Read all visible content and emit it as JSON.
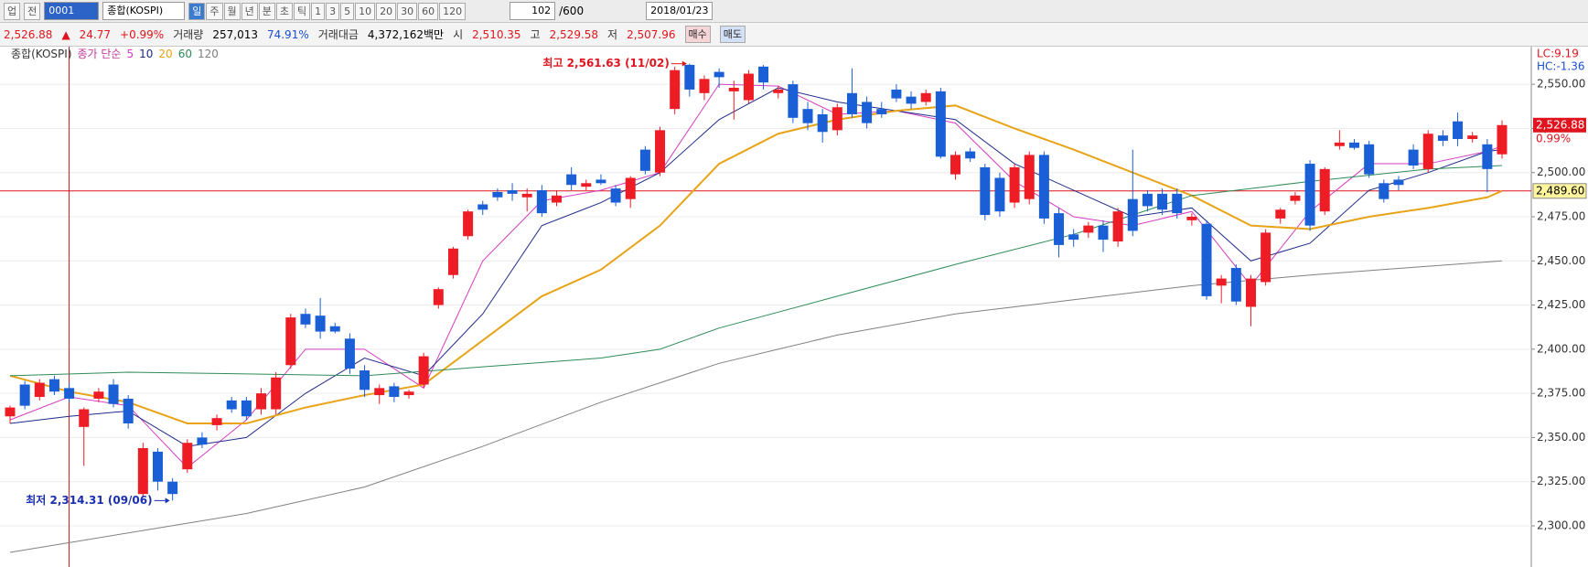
{
  "toolbar": {
    "market": "업",
    "scope": "전",
    "code": "0001",
    "name": "종합(KOSPI)",
    "periods": [
      "일",
      "주",
      "월",
      "년",
      "분",
      "초",
      "틱",
      "1",
      "3",
      "5",
      "10",
      "20",
      "30",
      "60",
      "120"
    ],
    "count": "102",
    "max_count": "/600",
    "date": "2018/01/23"
  },
  "quote": {
    "price": "2,526.88",
    "arrow": "▲",
    "change": "24.77",
    "change_pct": "+0.99%",
    "volume_label": "거래량",
    "volume": "257,013",
    "volume_pct": "74.91%",
    "amount_label": "거래대금",
    "amount": "4,372,162백만",
    "open_label": "시",
    "open": "2,510.35",
    "high_label": "고",
    "high": "2,529.58",
    "low_label": "저",
    "low": "2,507.96",
    "buy": "매수",
    "sell": "매도"
  },
  "chart_data": {
    "type": "candlestick",
    "name": "종합(KOSPI)",
    "ma_label": "종가 단순",
    "up_color": "#ee1c25",
    "down_color": "#1a5fd6",
    "open": [
      2362,
      2380,
      2373,
      2383,
      2378,
      2356,
      2372,
      2380,
      2372,
      2318,
      2342,
      2325,
      2332,
      2350,
      2357,
      2371,
      2371,
      2366,
      2366,
      2391,
      2420,
      2419,
      2413,
      2406,
      2388,
      2374,
      2379,
      2374,
      2380,
      2425,
      2442,
      2464,
      2482,
      2489,
      2490,
      2486,
      2490,
      2483,
      2499,
      2492,
      2496,
      2491,
      2485,
      2513,
      2500,
      2536,
      2561,
      2545,
      2557,
      2546,
      2541,
      2560,
      2545,
      2550,
      2536,
      2533,
      2524,
      2545,
      2540,
      2536,
      2547,
      2543,
      2540,
      2546,
      2499,
      2512,
      2503,
      2497,
      2483,
      2485,
      2510,
      2477,
      2465,
      2466,
      2470,
      2461,
      2485,
      2488,
      2488,
      2488,
      2473,
      2471,
      2436,
      2446,
      2424,
      2438,
      2474,
      2484,
      2505,
      2478,
      2515,
      2517,
      2516,
      2494,
      2496,
      2513,
      2502,
      2521,
      2529,
      2519,
      2516,
      2510.35
    ],
    "high": [
      2368,
      2382,
      2383,
      2385,
      2381,
      2367,
      2378,
      2383,
      2374,
      2347,
      2344,
      2327,
      2349,
      2353,
      2363,
      2373,
      2373,
      2378,
      2387,
      2420,
      2423,
      2429,
      2415,
      2409,
      2391,
      2380,
      2381,
      2377,
      2398,
      2435,
      2458,
      2479,
      2484,
      2491,
      2494,
      2491,
      2493,
      2490,
      2503,
      2496,
      2499,
      2493,
      2498,
      2515,
      2526,
      2560,
      2561.63,
      2555,
      2559,
      2552,
      2558,
      2561,
      2549,
      2552,
      2540,
      2536,
      2539,
      2559,
      2543,
      2540,
      2550,
      2546,
      2547,
      2548,
      2512,
      2514,
      2505,
      2500,
      2505,
      2512,
      2512,
      2480,
      2468,
      2472,
      2473,
      2480,
      2513,
      2490,
      2491,
      2491,
      2477,
      2473,
      2442,
      2448,
      2442,
      2468,
      2480,
      2489,
      2507,
      2503,
      2524,
      2519,
      2518,
      2496,
      2498,
      2516,
      2524,
      2524,
      2534,
      2523,
      2519,
      2529.58
    ],
    "low": [
      2358,
      2366,
      2371,
      2374,
      2370,
      2334,
      2370,
      2367,
      2355,
      2316,
      2320,
      2314.31,
      2330,
      2344,
      2354,
      2364,
      2360,
      2363,
      2363,
      2389,
      2412,
      2406,
      2409,
      2386,
      2373,
      2369,
      2370,
      2372,
      2378,
      2423,
      2440,
      2462,
      2476,
      2484,
      2484,
      2478,
      2475,
      2481,
      2490,
      2490,
      2493,
      2481,
      2480,
      2499,
      2498,
      2533,
      2543,
      2541,
      2548,
      2530,
      2539,
      2547,
      2542,
      2528,
      2524,
      2517,
      2521,
      2531,
      2525,
      2531,
      2540,
      2536,
      2538,
      2508,
      2496,
      2506,
      2473,
      2475,
      2480,
      2482,
      2471,
      2452,
      2458,
      2463,
      2455,
      2458,
      2464,
      2478,
      2476,
      2474,
      2470,
      2428,
      2426,
      2425,
      2413,
      2436,
      2471,
      2482,
      2467,
      2476,
      2513,
      2513,
      2497,
      2483,
      2490,
      2502,
      2500,
      2515,
      2515,
      2517,
      2489,
      2507.96
    ],
    "close": [
      2367,
      2368,
      2381,
      2376,
      2372,
      2366,
      2376,
      2369,
      2358,
      2344,
      2325,
      2318,
      2347,
      2346,
      2361,
      2366,
      2362,
      2375,
      2384,
      2418,
      2414,
      2410,
      2410,
      2389,
      2377,
      2378,
      2373,
      2376,
      2396,
      2434,
      2457,
      2478,
      2479,
      2486,
      2488,
      2488,
      2477,
      2487,
      2493,
      2494,
      2494,
      2483,
      2497,
      2501,
      2524,
      2558,
      2547,
      2553,
      2554,
      2548,
      2556,
      2551,
      2547,
      2531,
      2528,
      2523,
      2537,
      2533,
      2528,
      2533,
      2542,
      2539,
      2545,
      2509,
      2510,
      2508,
      2476,
      2478,
      2503,
      2510,
      2474,
      2459,
      2462,
      2470,
      2462,
      2478,
      2467,
      2481,
      2479,
      2477,
      2475,
      2430,
      2440,
      2427,
      2440,
      2466,
      2479,
      2487,
      2470,
      2502,
      2517,
      2514,
      2499,
      2485,
      2493,
      2504,
      2522,
      2518,
      2519,
      2521,
      2502,
      2526.88
    ],
    "series": [
      {
        "name": "5",
        "color": "#d63cc1",
        "x": [
          0,
          4,
          8,
          12,
          16,
          20,
          24,
          28,
          32,
          36,
          40,
          44,
          48,
          52,
          56,
          60,
          64,
          68,
          72,
          76,
          80,
          84,
          88,
          92,
          96,
          100,
          101
        ],
        "values": [
          2360,
          2373,
          2368,
          2333,
          2360,
          2400,
          2400,
          2378,
          2450,
          2484,
          2490,
          2500,
          2550,
          2549,
          2533,
          2535,
          2528,
          2495,
          2475,
          2470,
          2478,
          2436,
          2478,
          2505,
          2505,
          2512,
          2515
        ]
      },
      {
        "name": "10",
        "color": "#1e2a8a",
        "x": [
          0,
          4,
          8,
          12,
          16,
          20,
          24,
          28,
          32,
          36,
          40,
          44,
          48,
          52,
          56,
          60,
          64,
          68,
          72,
          76,
          80,
          84,
          88,
          92,
          96,
          100,
          101
        ],
        "values": [
          2358,
          2362,
          2365,
          2345,
          2350,
          2375,
          2395,
          2385,
          2420,
          2470,
          2483,
          2500,
          2530,
          2548,
          2540,
          2535,
          2530,
          2505,
          2490,
          2475,
          2480,
          2450,
          2460,
          2490,
          2500,
          2512,
          2513
        ]
      },
      {
        "name": "20",
        "color": "#e8a317",
        "x": [
          0,
          4,
          8,
          12,
          16,
          20,
          24,
          28,
          32,
          36,
          40,
          44,
          48,
          52,
          56,
          60,
          64,
          68,
          72,
          76,
          80,
          84,
          88,
          92,
          96,
          100,
          101
        ],
        "values": [
          2385,
          2376,
          2370,
          2358,
          2358,
          2367,
          2374,
          2380,
          2405,
          2430,
          2445,
          2470,
          2505,
          2522,
          2530,
          2535,
          2538,
          2525,
          2513,
          2500,
          2487,
          2470,
          2468,
          2475,
          2480,
          2486,
          2489.6
        ]
      },
      {
        "name": "60",
        "color": "#2e8b57",
        "x": [
          0,
          8,
          16,
          24,
          32,
          40,
          44,
          48,
          56,
          64,
          72,
          80,
          88,
          96,
          101
        ],
        "values": [
          2385,
          2387,
          2386,
          2385,
          2390,
          2395,
          2400,
          2412,
          2430,
          2448,
          2465,
          2487,
          2495,
          2502,
          2504
        ]
      },
      {
        "name": "120",
        "color": "#808080",
        "x": [
          0,
          8,
          16,
          24,
          32,
          40,
          48,
          56,
          64,
          72,
          80,
          88,
          96,
          101
        ],
        "values": [
          2285,
          2296,
          2307,
          2322,
          2345,
          2370,
          2392,
          2408,
          2420,
          2428,
          2436,
          2442,
          2447,
          2450
        ]
      }
    ],
    "ylim": [
      2276.7,
      2571.3
    ],
    "yticks": [
      {
        "value": 2300,
        "label": "2,300.00"
      },
      {
        "value": 2325,
        "label": "2,325.00"
      },
      {
        "value": 2350,
        "label": "2,350.00"
      },
      {
        "value": 2375,
        "label": "2,375.00"
      },
      {
        "value": 2400,
        "label": "2,400.00"
      },
      {
        "value": 2425,
        "label": "2,425.00"
      },
      {
        "value": 2450,
        "label": "2,450.00"
      },
      {
        "value": 2475,
        "label": "2,475.00"
      },
      {
        "value": 2500,
        "label": "2,500.00"
      },
      {
        "value": 2525,
        "label": "2,525.00"
      },
      {
        "value": 2550,
        "label": "2,550.00"
      }
    ],
    "grid": true,
    "annotations": [
      {
        "text": "최고 2,561.63 (11/02)",
        "x": 46,
        "value": 2561.63
      },
      {
        "text": "최저 2,314.31 (09/06)",
        "x": 11,
        "value": 2314.31
      }
    ],
    "crosshair": {
      "x": 4,
      "value": 2489.6,
      "label": "2,489.60"
    },
    "last_price": {
      "value": 2526.88,
      "label": "2,526.88",
      "change": "0.99%"
    },
    "lc": "LC:9.19",
    "hc": "HC:-1.36"
  }
}
